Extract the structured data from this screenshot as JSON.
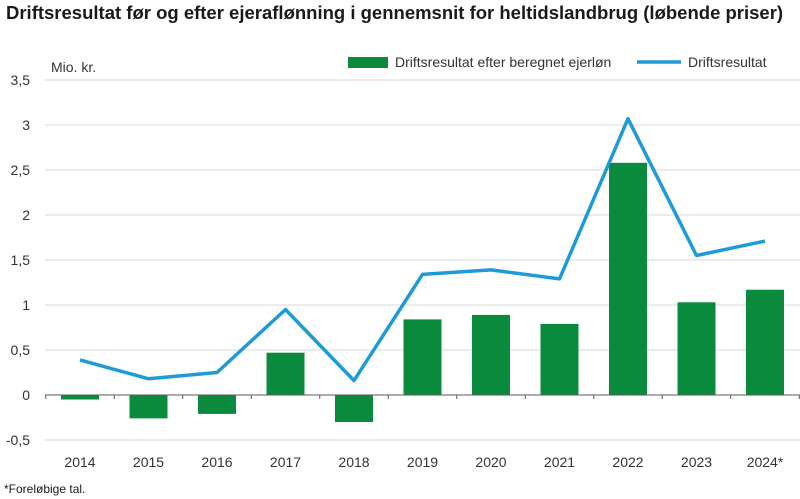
{
  "title": "Driftsresultat før og efter ejeraflønning i gennemsnit for heltidslandbrug (løbende priser)",
  "footnote": "*Foreløbige tal.",
  "chart_data": {
    "type": "bar",
    "title": "Driftsresultat før og efter ejeraflønning i gennemsnit for heltidslandbrug (løbende priser)",
    "ylabel": "Mio. kr.",
    "xlabel": "",
    "categories": [
      "2014",
      "2015",
      "2016",
      "2017",
      "2018",
      "2019",
      "2020",
      "2021",
      "2022",
      "2023",
      "2024*"
    ],
    "ylim": [
      -0.5,
      3.5
    ],
    "yticks": [
      -0.5,
      0,
      0.5,
      1,
      1.5,
      2,
      2.5,
      3,
      3.5
    ],
    "ytick_labels": [
      "-0,5",
      "0",
      "0,5",
      "1",
      "1,5",
      "2",
      "2,5",
      "3",
      "3,5"
    ],
    "grid": "horizontal",
    "legend_position": "top-right",
    "series": [
      {
        "name": "Driftsresultat efter beregnet ejerløn",
        "type": "bar",
        "color": "#0a8a3c",
        "values": [
          -0.05,
          -0.26,
          -0.21,
          0.47,
          -0.3,
          0.84,
          0.89,
          0.79,
          2.58,
          1.03,
          1.17
        ]
      },
      {
        "name": "Driftsresultat",
        "type": "line",
        "color": "#1e9bd7",
        "values": [
          0.39,
          0.18,
          0.25,
          0.95,
          0.16,
          1.34,
          1.39,
          1.29,
          3.07,
          1.55,
          1.71
        ]
      }
    ]
  }
}
